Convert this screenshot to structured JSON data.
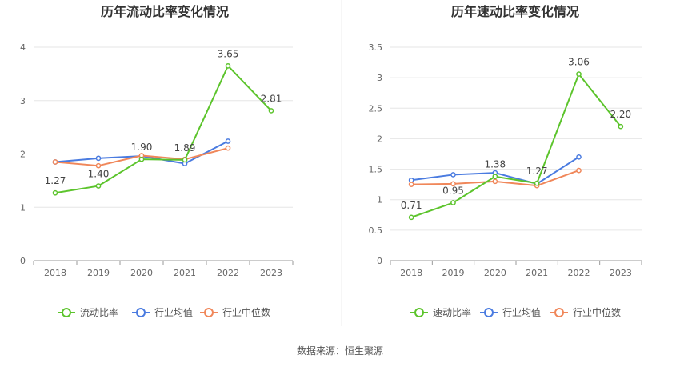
{
  "source_text": "数据来源：恒生聚源",
  "series_colors": {
    "company": "#5cc42c",
    "industry_avg": "#4a7be0",
    "industry_median": "#f0875a"
  },
  "chart_data": [
    {
      "type": "line",
      "title": "历年流动比率变化情况",
      "categories": [
        "2018",
        "2019",
        "2020",
        "2021",
        "2022",
        "2023"
      ],
      "ylim": [
        0,
        4
      ],
      "yticks": [
        0,
        1,
        2,
        3,
        4
      ],
      "ytick_labels": [
        "0",
        "1",
        "2",
        "3",
        "4"
      ],
      "grid": true,
      "legend_position": "bottom",
      "series": [
        {
          "name": "流动比率",
          "key": "company",
          "values": [
            1.27,
            1.4,
            1.9,
            1.89,
            3.65,
            2.81
          ],
          "labels": [
            "1.27",
            "1.40",
            "1.90",
            "1.89",
            "3.65",
            "2.81"
          ]
        },
        {
          "name": "行业均值",
          "key": "industry_avg",
          "values": [
            1.85,
            1.92,
            1.96,
            1.82,
            2.24,
            null
          ]
        },
        {
          "name": "行业中位数",
          "key": "industry_median",
          "values": [
            1.85,
            1.78,
            1.97,
            1.9,
            2.11,
            null
          ]
        }
      ]
    },
    {
      "type": "line",
      "title": "历年速动比率变化情况",
      "categories": [
        "2018",
        "2019",
        "2020",
        "2021",
        "2022",
        "2023"
      ],
      "ylim": [
        0,
        3.5
      ],
      "yticks": [
        0,
        0.5,
        1,
        1.5,
        2,
        2.5,
        3,
        3.5
      ],
      "ytick_labels": [
        "0",
        "0.5",
        "1",
        "1.5",
        "2",
        "2.5",
        "3",
        "3.5"
      ],
      "grid": true,
      "legend_position": "bottom",
      "series": [
        {
          "name": "速动比率",
          "key": "company",
          "values": [
            0.71,
            0.95,
            1.38,
            1.27,
            3.06,
            2.2
          ],
          "labels": [
            "0.71",
            "0.95",
            "1.38",
            "1.27",
            "3.06",
            "2.20"
          ]
        },
        {
          "name": "行业均值",
          "key": "industry_avg",
          "values": [
            1.32,
            1.41,
            1.44,
            1.26,
            1.7,
            null
          ]
        },
        {
          "name": "行业中位数",
          "key": "industry_median",
          "values": [
            1.25,
            1.26,
            1.3,
            1.23,
            1.48,
            null
          ]
        }
      ]
    }
  ]
}
